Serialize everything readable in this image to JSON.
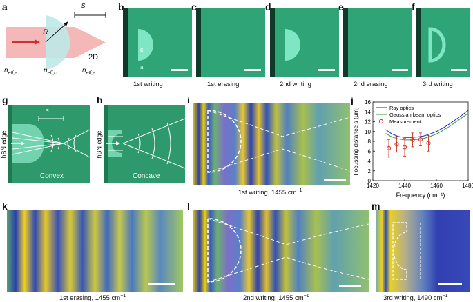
{
  "panels": {
    "a": {
      "label": "a",
      "s": "s",
      "R": "R",
      "two_d": "2D",
      "n1": "n",
      "n1_sub": "eff,a",
      "n2": "n",
      "n2_sub": "eff,c",
      "n3": "n",
      "n3_sub": "eff,a"
    },
    "b": {
      "label": "b",
      "caption": "1st writing",
      "c": "c",
      "a": "a"
    },
    "c": {
      "label": "c",
      "caption": "1st erasing"
    },
    "d": {
      "label": "d",
      "caption": "2nd writing"
    },
    "e": {
      "label": "e",
      "caption": "2nd erasing"
    },
    "f": {
      "label": "f",
      "caption": "3rd writing"
    },
    "g": {
      "label": "g",
      "caption": "Convex",
      "edge": "hBN edge",
      "s": "s"
    },
    "h": {
      "label": "h",
      "caption": "Concave",
      "edge": "hBN edge"
    },
    "i": {
      "label": "i",
      "caption": "1st writing, 1455 cm",
      "sup": "−1"
    },
    "j": {
      "label": "j"
    },
    "k": {
      "label": "k",
      "caption": "1st erasing, 1455 cm",
      "sup": "−1"
    },
    "l": {
      "label": "l",
      "caption": "2nd writing, 1455 cm",
      "sup": "−1"
    },
    "m": {
      "label": "m",
      "caption": "3rd  writing, 1490 cm",
      "sup": "−1"
    }
  },
  "colors": {
    "green_bg": "#2e9a6b",
    "dark_green": "#1f7a53",
    "light_green": "#7fe6c3",
    "ray": "#1f1fd0",
    "gauss": "#2a9a3a",
    "meas": "#d03020",
    "arrow": "#d03030"
  },
  "chart_data": {
    "type": "scatter",
    "xlabel": "Frequency (cm⁻¹)",
    "ylabel": "Focussing distance s (μm)",
    "xlim": [
      1420,
      1480
    ],
    "ylim": [
      0,
      16
    ],
    "xticks": [
      1420,
      1440,
      1460,
      1480
    ],
    "yticks": [
      0,
      2,
      4,
      6,
      8,
      10,
      12,
      14,
      16
    ],
    "legend_position": "top-left",
    "series": [
      {
        "name": "Ray optics",
        "kind": "line",
        "color": "#1f1fd0",
        "x": [
          1428,
          1432,
          1436,
          1440,
          1444,
          1448,
          1452,
          1456,
          1460,
          1464,
          1468,
          1472,
          1476,
          1480
        ],
        "y": [
          10.4,
          9.5,
          9.0,
          8.8,
          8.8,
          8.9,
          9.1,
          9.5,
          10.0,
          10.7,
          11.5,
          12.4,
          13.3,
          14.3
        ]
      },
      {
        "name": "Gaussian beam optics",
        "kind": "line",
        "color": "#2a9a3a",
        "x": [
          1428,
          1432,
          1436,
          1440,
          1444,
          1448,
          1452,
          1456,
          1460,
          1464,
          1468,
          1472,
          1476,
          1480
        ],
        "y": [
          9.6,
          8.9,
          8.5,
          8.3,
          8.3,
          8.4,
          8.6,
          9.0,
          9.5,
          10.2,
          11.0,
          11.9,
          12.8,
          13.7
        ]
      },
      {
        "name": "Measurement",
        "kind": "errorbar",
        "color": "#d03020",
        "x": [
          1430,
          1435,
          1440,
          1445,
          1450,
          1455
        ],
        "y": [
          6.6,
          7.4,
          6.8,
          8.3,
          8.4,
          7.6
        ],
        "err": [
          1.8,
          1.6,
          1.8,
          1.4,
          1.3,
          1.6
        ]
      }
    ]
  }
}
